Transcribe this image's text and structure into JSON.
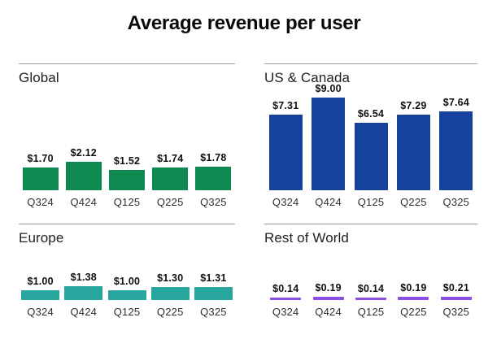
{
  "title": "Average revenue per user",
  "chart_data": [
    {
      "type": "bar",
      "title": "Global",
      "categories": [
        "Q324",
        "Q424",
        "Q125",
        "Q225",
        "Q325"
      ],
      "values": [
        1.7,
        2.12,
        1.52,
        1.74,
        1.78
      ],
      "value_labels": [
        "$1.70",
        "$2.12",
        "$1.52",
        "$1.74",
        "$1.78"
      ],
      "bar_color": "#0e8a50",
      "grid": false,
      "legend": "none"
    },
    {
      "type": "bar",
      "title": "US & Canada",
      "categories": [
        "Q324",
        "Q424",
        "Q125",
        "Q225",
        "Q325"
      ],
      "values": [
        7.31,
        9.0,
        6.54,
        7.29,
        7.64
      ],
      "value_labels": [
        "$7.31",
        "$9.00",
        "$6.54",
        "$7.29",
        "$7.64"
      ],
      "bar_color": "#16419c",
      "grid": false,
      "legend": "none"
    },
    {
      "type": "bar",
      "title": "Europe",
      "categories": [
        "Q324",
        "Q424",
        "Q125",
        "Q225",
        "Q325"
      ],
      "values": [
        1.0,
        1.38,
        1.0,
        1.3,
        1.31
      ],
      "value_labels": [
        "$1.00",
        "$1.38",
        "$1.00",
        "$1.30",
        "$1.31"
      ],
      "bar_color": "#29a79e",
      "grid": false,
      "legend": "none"
    },
    {
      "type": "bar",
      "title": "Rest of World",
      "categories": [
        "Q324",
        "Q424",
        "Q125",
        "Q225",
        "Q325"
      ],
      "values": [
        0.14,
        0.19,
        0.14,
        0.19,
        0.21
      ],
      "value_labels": [
        "$0.14",
        "$0.19",
        "$0.14",
        "$0.19",
        "$0.21"
      ],
      "bar_color": "#8b4fe3",
      "grid": false,
      "legend": "none"
    }
  ]
}
